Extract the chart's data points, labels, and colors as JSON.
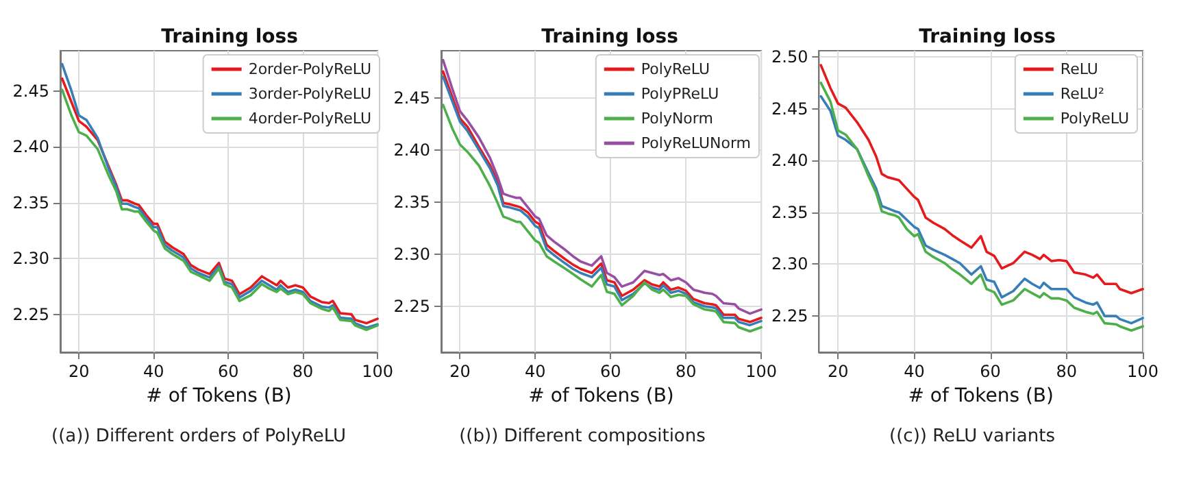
{
  "chart_data": [
    {
      "type": "line",
      "title": "Training loss",
      "xlabel": "# of Tokens (B)",
      "xlim": [
        15,
        100
      ],
      "xticks": [
        20,
        40,
        60,
        80,
        100
      ],
      "ylim": [
        2.216,
        2.486
      ],
      "yticks": [
        2.25,
        {
          "value": 2.3,
          "label": "2.30"
        },
        2.35,
        {
          "value": 2.4,
          "label": "2.40"
        },
        2.45
      ],
      "grid": true,
      "legend": "top right",
      "marker": "none",
      "line_style": "solid",
      "annotations": [
        "((a)) Different orders of PolyReLU"
      ],
      "x": [
        15.5,
        18,
        20,
        22,
        25,
        28,
        30,
        31.5,
        33,
        35,
        36,
        38,
        40,
        41,
        43,
        45,
        48,
        50,
        52,
        55,
        57.5,
        59,
        61,
        63,
        66,
        69,
        71,
        73,
        74,
        76,
        78,
        80,
        82,
        85,
        87,
        88,
        90,
        93,
        94,
        97,
        100
      ],
      "series": [
        {
          "name": "2order-PolyReLU",
          "color": "#e41a1c",
          "values": [
            2.461,
            2.44,
            2.423,
            2.418,
            2.406,
            2.382,
            2.366,
            2.352,
            2.352,
            2.349,
            2.348,
            2.339,
            2.331,
            2.331,
            2.315,
            2.31,
            2.304,
            2.294,
            2.29,
            2.286,
            2.296,
            2.282,
            2.28,
            2.268,
            2.274,
            2.284,
            2.28,
            2.276,
            2.28,
            2.274,
            2.276,
            2.274,
            2.266,
            2.261,
            2.26,
            2.262,
            2.251,
            2.25,
            2.245,
            2.242,
            2.246
          ]
        },
        {
          "name": "3order-PolyReLU",
          "color": "#377eb8",
          "values": [
            2.474,
            2.45,
            2.428,
            2.424,
            2.408,
            2.38,
            2.364,
            2.349,
            2.349,
            2.346,
            2.345,
            2.336,
            2.328,
            2.328,
            2.312,
            2.307,
            2.301,
            2.291,
            2.287,
            2.283,
            2.293,
            2.279,
            2.277,
            2.265,
            2.271,
            2.28,
            2.276,
            2.272,
            2.276,
            2.27,
            2.272,
            2.27,
            2.262,
            2.257,
            2.256,
            2.258,
            2.247,
            2.246,
            2.242,
            2.238,
            2.241
          ]
        },
        {
          "name": "4order-PolyReLU",
          "color": "#4daf4a",
          "values": [
            2.451,
            2.428,
            2.413,
            2.41,
            2.398,
            2.374,
            2.36,
            2.344,
            2.344,
            2.342,
            2.342,
            2.333,
            2.325,
            2.323,
            2.309,
            2.304,
            2.298,
            2.288,
            2.285,
            2.28,
            2.291,
            2.277,
            2.274,
            2.262,
            2.267,
            2.277,
            2.273,
            2.27,
            2.273,
            2.268,
            2.27,
            2.268,
            2.26,
            2.255,
            2.253,
            2.256,
            2.245,
            2.244,
            2.24,
            2.236,
            2.24
          ]
        }
      ]
    },
    {
      "type": "line",
      "title": "Training loss",
      "xlabel": "# of Tokens (B)",
      "xlim": [
        15,
        100
      ],
      "xticks": [
        20,
        40,
        60,
        80,
        100
      ],
      "ylim": [
        2.206,
        2.495
      ],
      "yticks": [
        2.25,
        {
          "value": 2.3,
          "label": "2.30"
        },
        2.35,
        {
          "value": 2.4,
          "label": "2.40"
        },
        2.45
      ],
      "grid": true,
      "legend": "top right",
      "marker": "none",
      "line_style": "solid",
      "annotations": [
        "((b)) Different compositions"
      ],
      "x": [
        15.5,
        18,
        20,
        22,
        25,
        28,
        30,
        31.5,
        33,
        35,
        36,
        38,
        40,
        41,
        43,
        45,
        48,
        50,
        52,
        55,
        57.5,
        59,
        61,
        63,
        66,
        69,
        71,
        73,
        74,
        76,
        78,
        80,
        82,
        85,
        87,
        88,
        90,
        93,
        94,
        97,
        100
      ],
      "series": [
        {
          "name": "PolyReLU",
          "color": "#e41a1c",
          "values": [
            2.475,
            2.45,
            2.43,
            2.422,
            2.403,
            2.385,
            2.369,
            2.349,
            2.348,
            2.346,
            2.345,
            2.34,
            2.331,
            2.329,
            2.309,
            2.303,
            2.295,
            2.29,
            2.286,
            2.282,
            2.291,
            2.275,
            2.273,
            2.26,
            2.266,
            2.275,
            2.271,
            2.269,
            2.273,
            2.266,
            2.268,
            2.265,
            2.257,
            2.253,
            2.252,
            2.251,
            2.242,
            2.242,
            2.238,
            2.235,
            2.239
          ]
        },
        {
          "name": "PolyPReLU",
          "color": "#377eb8",
          "values": [
            2.47,
            2.446,
            2.427,
            2.418,
            2.4,
            2.382,
            2.366,
            2.346,
            2.345,
            2.343,
            2.342,
            2.336,
            2.327,
            2.325,
            2.305,
            2.299,
            2.291,
            2.286,
            2.282,
            2.278,
            2.287,
            2.271,
            2.269,
            2.256,
            2.262,
            2.272,
            2.268,
            2.266,
            2.27,
            2.263,
            2.265,
            2.262,
            2.254,
            2.25,
            2.249,
            2.248,
            2.239,
            2.239,
            2.235,
            2.232,
            2.236
          ]
        },
        {
          "name": "PolyNorm",
          "color": "#4daf4a",
          "values": [
            2.443,
            2.42,
            2.405,
            2.398,
            2.385,
            2.365,
            2.349,
            2.336,
            2.334,
            2.331,
            2.331,
            2.322,
            2.313,
            2.311,
            2.298,
            2.293,
            2.286,
            2.281,
            2.276,
            2.269,
            2.28,
            2.264,
            2.262,
            2.251,
            2.26,
            2.273,
            2.266,
            2.263,
            2.266,
            2.259,
            2.261,
            2.26,
            2.252,
            2.247,
            2.246,
            2.245,
            2.235,
            2.234,
            2.23,
            2.226,
            2.23
          ]
        },
        {
          "name": "PolyReLUNorm",
          "color": "#984ea3",
          "values": [
            2.486,
            2.458,
            2.437,
            2.428,
            2.412,
            2.392,
            2.374,
            2.358,
            2.356,
            2.354,
            2.354,
            2.345,
            2.336,
            2.334,
            2.318,
            2.312,
            2.304,
            2.298,
            2.293,
            2.289,
            2.298,
            2.282,
            2.278,
            2.269,
            2.273,
            2.284,
            2.282,
            2.28,
            2.281,
            2.275,
            2.277,
            2.273,
            2.266,
            2.263,
            2.262,
            2.26,
            2.253,
            2.252,
            2.248,
            2.243,
            2.247
          ]
        }
      ]
    },
    {
      "type": "line",
      "title": "Training loss",
      "xlabel": "# of Tokens (B)",
      "xlim": [
        15,
        100
      ],
      "xticks": [
        20,
        40,
        60,
        80,
        100
      ],
      "ylim": [
        2.215,
        2.506
      ],
      "yticks": [
        2.25,
        {
          "value": 2.3,
          "label": "2.30"
        },
        2.35,
        {
          "value": 2.4,
          "label": "2.40"
        },
        2.45,
        {
          "value": 2.5,
          "label": "2.50"
        }
      ],
      "grid": true,
      "legend": "top right",
      "marker": "none",
      "line_style": "solid",
      "annotations": [
        "((c)) ReLU variants"
      ],
      "x": [
        15.5,
        18,
        20,
        22,
        25,
        28,
        30,
        31.5,
        33,
        35,
        36,
        38,
        40,
        41,
        43,
        45,
        48,
        50,
        52,
        55,
        57.5,
        59,
        61,
        63,
        66,
        69,
        71,
        73,
        74,
        76,
        78,
        80,
        82,
        85,
        87,
        88,
        90,
        93,
        94,
        97,
        100
      ],
      "series": [
        {
          "name": "ReLU",
          "color": "#e41a1c",
          "values": [
            2.492,
            2.47,
            2.455,
            2.451,
            2.437,
            2.42,
            2.404,
            2.387,
            2.384,
            2.382,
            2.381,
            2.373,
            2.365,
            2.362,
            2.345,
            2.34,
            2.334,
            2.328,
            2.323,
            2.316,
            2.327,
            2.312,
            2.308,
            2.296,
            2.301,
            2.312,
            2.309,
            2.305,
            2.309,
            2.303,
            2.304,
            2.303,
            2.292,
            2.29,
            2.287,
            2.29,
            2.281,
            2.281,
            2.276,
            2.272,
            2.276
          ]
        },
        {
          "name": "ReLU²",
          "color": "#377eb8",
          "values": [
            2.462,
            2.448,
            2.424,
            2.42,
            2.411,
            2.388,
            2.373,
            2.356,
            2.354,
            2.351,
            2.35,
            2.343,
            2.336,
            2.334,
            2.318,
            2.314,
            2.309,
            2.305,
            2.301,
            2.29,
            2.298,
            2.285,
            2.283,
            2.268,
            2.274,
            2.286,
            2.281,
            2.277,
            2.282,
            2.276,
            2.276,
            2.276,
            2.268,
            2.263,
            2.261,
            2.263,
            2.25,
            2.25,
            2.247,
            2.243,
            2.248
          ]
        },
        {
          "name": "PolyReLU",
          "color": "#4daf4a",
          "values": [
            2.475,
            2.457,
            2.429,
            2.425,
            2.411,
            2.385,
            2.369,
            2.351,
            2.349,
            2.347,
            2.345,
            2.334,
            2.327,
            2.329,
            2.312,
            2.307,
            2.301,
            2.295,
            2.29,
            2.281,
            2.29,
            2.276,
            2.273,
            2.261,
            2.265,
            2.276,
            2.272,
            2.268,
            2.272,
            2.267,
            2.267,
            2.265,
            2.258,
            2.254,
            2.252,
            2.254,
            2.243,
            2.242,
            2.24,
            2.236,
            2.24
          ]
        }
      ]
    }
  ]
}
